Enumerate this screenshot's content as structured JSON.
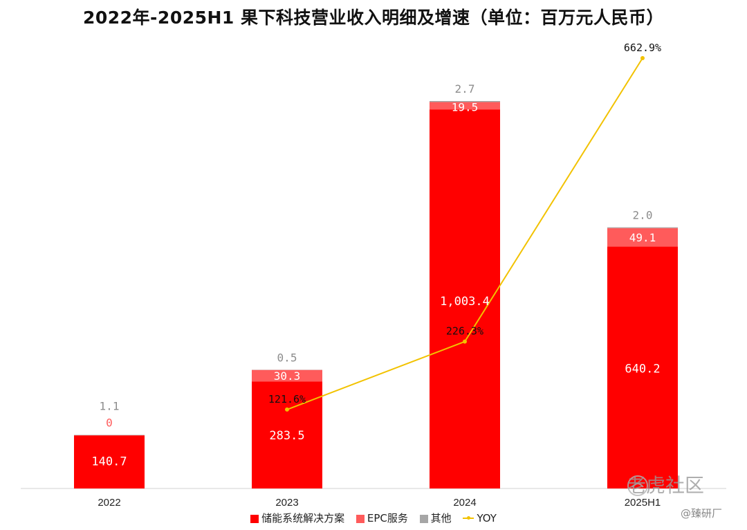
{
  "title": "2022年-2025H1 果下科技营业收入明细及增速（单位：百万元人民币）",
  "chart_data": {
    "type": "bar",
    "stacked": true,
    "categories": [
      "2022",
      "2023",
      "2024",
      "2025H1"
    ],
    "series": [
      {
        "name": "储能系统解决方案",
        "values": [
          140.7,
          283.5,
          1003.4,
          640.2
        ],
        "labels": [
          "140.7",
          "283.5",
          "1,003.4",
          "640.2"
        ],
        "color": "#ff0000"
      },
      {
        "name": "EPC服务",
        "values": [
          0,
          30.3,
          19.5,
          49.1
        ],
        "labels": [
          "0",
          "30.3",
          "19.5",
          "49.1"
        ],
        "color": "#ff5b5b"
      },
      {
        "name": "其他",
        "values": [
          1.1,
          0.5,
          2.7,
          2.0
        ],
        "labels": [
          "1.1",
          "0.5",
          "2.7",
          "2.0"
        ],
        "color": "#a6a6a6"
      }
    ],
    "line_series": {
      "name": "YOY",
      "values": [
        null,
        121.6,
        226.3,
        662.9
      ],
      "labels": [
        "",
        "121.6%",
        "226.3%",
        "662.9%"
      ],
      "color": "#f2c200"
    },
    "grid": false,
    "legend": "bottom"
  },
  "watermark": {
    "logo": "老虎社区",
    "handle": "@臻研厂"
  }
}
